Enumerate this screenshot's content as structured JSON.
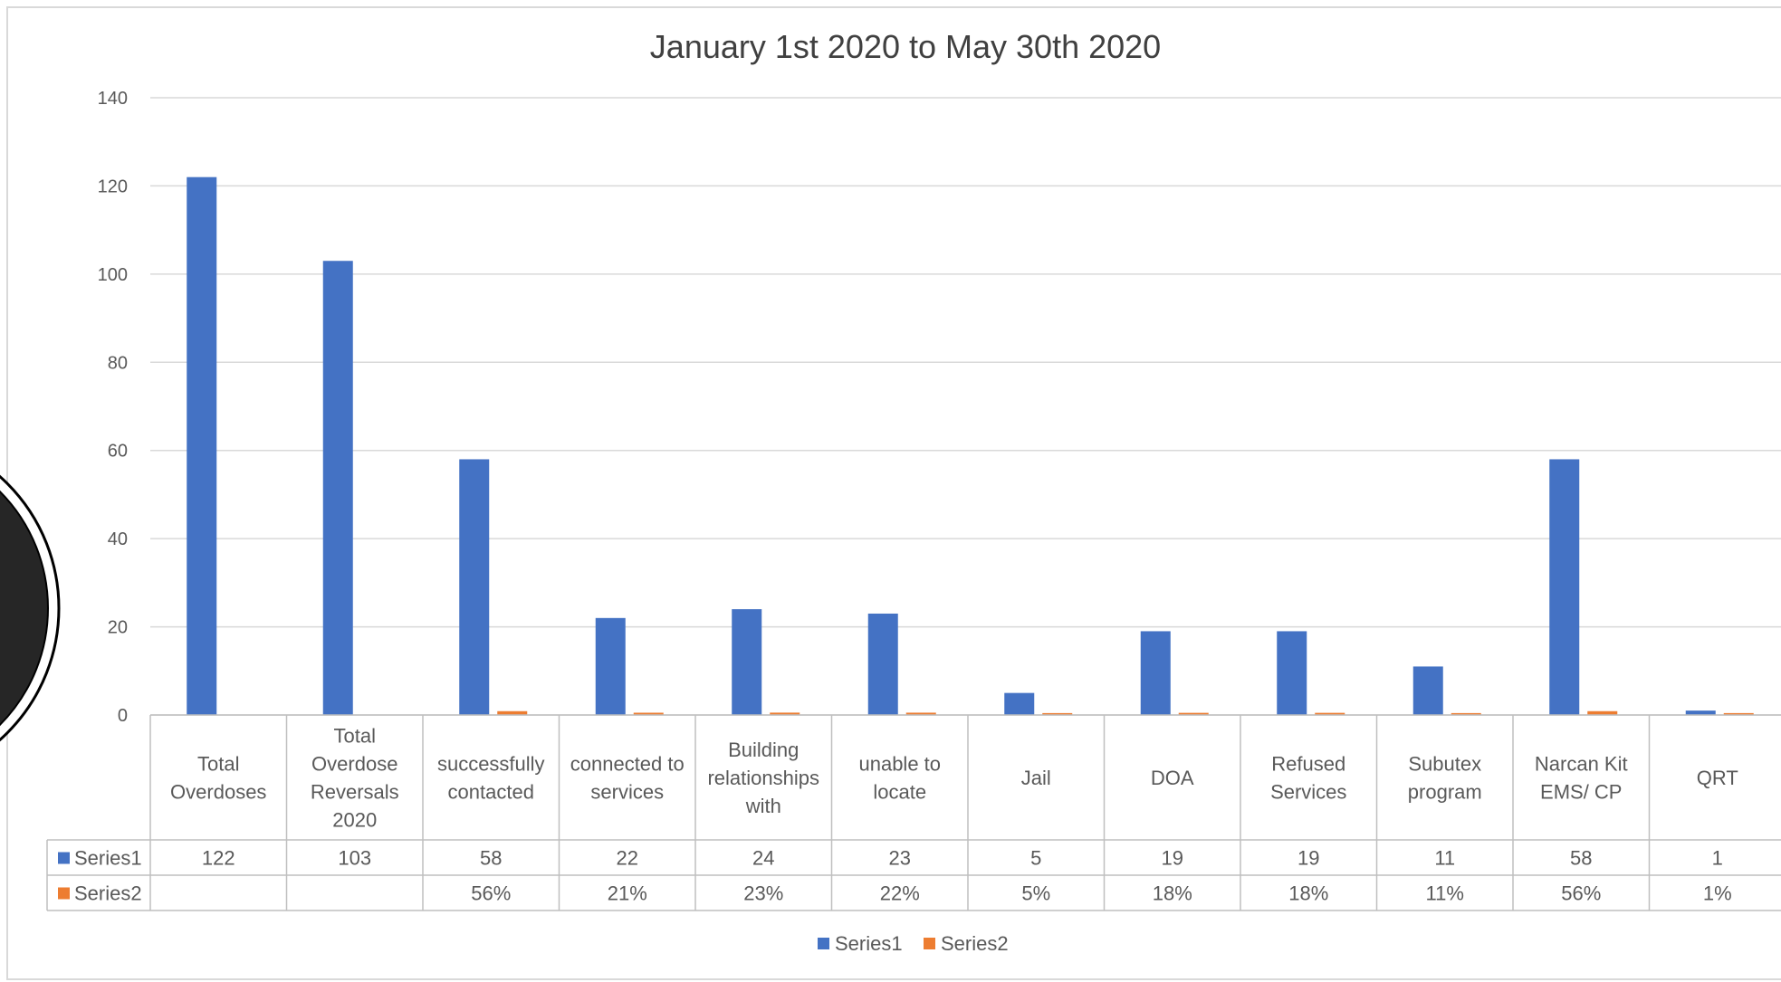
{
  "chart_data": {
    "type": "bar",
    "title": "January 1st 2020 to May 30th 2020",
    "categories": [
      [
        "Total",
        "Overdoses"
      ],
      [
        "Total",
        "Overdose",
        "Reversals",
        "2020"
      ],
      [
        "successfully",
        "contacted"
      ],
      [
        "connected to",
        "services"
      ],
      [
        "Building",
        "relationships",
        "with"
      ],
      [
        "unable to",
        "locate"
      ],
      [
        "Jail"
      ],
      [
        "DOA"
      ],
      [
        "Refused",
        "Services"
      ],
      [
        "Subutex",
        "program"
      ],
      [
        "Narcan Kit",
        "EMS/ CP"
      ],
      [
        "QRT"
      ]
    ],
    "series": [
      {
        "name": "Series1",
        "color": "#4472c4",
        "values": [
          122,
          103,
          58,
          22,
          24,
          23,
          5,
          19,
          19,
          11,
          58,
          1
        ],
        "labels": [
          "122",
          "103",
          "58",
          "22",
          "24",
          "23",
          "5",
          "19",
          "19",
          "11",
          "58",
          "1"
        ]
      },
      {
        "name": "Series2",
        "color": "#ed7d31",
        "values": [
          null,
          null,
          0.56,
          0.21,
          0.23,
          0.22,
          0.05,
          0.18,
          0.18,
          0.11,
          0.56,
          0.01
        ],
        "labels": [
          "",
          "",
          "56%",
          "21%",
          "23%",
          "22%",
          "5%",
          "18%",
          "18%",
          "11%",
          "56%",
          "1%"
        ]
      }
    ],
    "yticks": [
      "0",
      "20",
      "40",
      "60",
      "80",
      "100",
      "120",
      "140"
    ],
    "ylim": [
      0,
      140
    ],
    "grid": true,
    "legend": "bottom",
    "data_table": true
  }
}
